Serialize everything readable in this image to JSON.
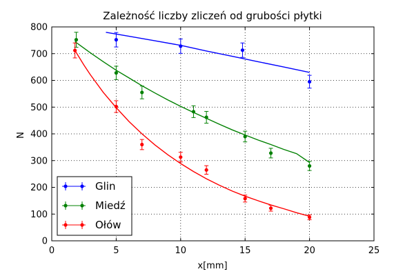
{
  "chart_data": {
    "type": "scatter",
    "title": "Zależność liczby zliczeń od grubości płytki",
    "xlabel": "x[mm]",
    "ylabel": "N",
    "xlim": [
      0,
      25
    ],
    "ylim": [
      0,
      800
    ],
    "xticks": [
      0,
      5,
      10,
      15,
      20,
      25
    ],
    "yticks": [
      0,
      100,
      200,
      300,
      400,
      500,
      600,
      700,
      800
    ],
    "grid": true,
    "legend_position": "bottom-left",
    "series": [
      {
        "name": "Glin",
        "color": "#0000ff",
        "points": [
          {
            "x": 5,
            "y": 752,
            "xerr": 0.1,
            "yerr": 27
          },
          {
            "x": 10,
            "y": 728,
            "xerr": 0.1,
            "yerr": 27
          },
          {
            "x": 14.8,
            "y": 713,
            "xerr": 0.1,
            "yerr": 27
          },
          {
            "x": 20,
            "y": 595,
            "xerr": 0.1,
            "yerr": 24
          }
        ],
        "fit": [
          {
            "x": 4.2,
            "y": 780
          },
          {
            "x": 6,
            "y": 765
          },
          {
            "x": 8,
            "y": 748
          },
          {
            "x": 10,
            "y": 731
          },
          {
            "x": 12,
            "y": 710
          },
          {
            "x": 14,
            "y": 690
          },
          {
            "x": 16,
            "y": 670
          },
          {
            "x": 18,
            "y": 650
          },
          {
            "x": 20,
            "y": 630
          }
        ]
      },
      {
        "name": "Miedź",
        "color": "#008000",
        "points": [
          {
            "x": 1.9,
            "y": 752,
            "xerr": 0.1,
            "yerr": 28
          },
          {
            "x": 5,
            "y": 628,
            "xerr": 0.1,
            "yerr": 25
          },
          {
            "x": 7,
            "y": 555,
            "xerr": 0.1,
            "yerr": 24
          },
          {
            "x": 11,
            "y": 483,
            "xerr": 0.1,
            "yerr": 22
          },
          {
            "x": 12,
            "y": 462,
            "xerr": 0.1,
            "yerr": 22
          },
          {
            "x": 15,
            "y": 390,
            "xerr": 0.1,
            "yerr": 20
          },
          {
            "x": 17,
            "y": 328,
            "xerr": 0.1,
            "yerr": 18
          },
          {
            "x": 20,
            "y": 280,
            "xerr": 0.1,
            "yerr": 17
          }
        ],
        "fit": [
          {
            "x": 1.8,
            "y": 745
          },
          {
            "x": 3,
            "y": 703
          },
          {
            "x": 4,
            "y": 670
          },
          {
            "x": 5,
            "y": 638
          },
          {
            "x": 6,
            "y": 609
          },
          {
            "x": 7,
            "y": 580
          },
          {
            "x": 8,
            "y": 553
          },
          {
            "x": 9,
            "y": 527
          },
          {
            "x": 10,
            "y": 503
          },
          {
            "x": 11,
            "y": 480
          },
          {
            "x": 12,
            "y": 458
          },
          {
            "x": 13,
            "y": 436
          },
          {
            "x": 14,
            "y": 415
          },
          {
            "x": 15,
            "y": 396
          },
          {
            "x": 16,
            "y": 377
          },
          {
            "x": 17,
            "y": 360
          },
          {
            "x": 18,
            "y": 342
          },
          {
            "x": 19,
            "y": 326
          },
          {
            "x": 20,
            "y": 293
          }
        ]
      },
      {
        "name": "Ołów",
        "color": "#ff0000",
        "points": [
          {
            "x": 1.8,
            "y": 712,
            "xerr": 0.1,
            "yerr": 28
          },
          {
            "x": 5,
            "y": 502,
            "xerr": 0.1,
            "yerr": 22
          },
          {
            "x": 7,
            "y": 360,
            "xerr": 0.1,
            "yerr": 19
          },
          {
            "x": 10,
            "y": 313,
            "xerr": 0.1,
            "yerr": 18
          },
          {
            "x": 12,
            "y": 265,
            "xerr": 0.1,
            "yerr": 16
          },
          {
            "x": 15,
            "y": 158,
            "xerr": 0.1,
            "yerr": 13
          },
          {
            "x": 17,
            "y": 122,
            "xerr": 0.1,
            "yerr": 11
          },
          {
            "x": 20,
            "y": 88,
            "xerr": 0.1,
            "yerr": 9
          }
        ],
        "fit": [
          {
            "x": 1.8,
            "y": 712
          },
          {
            "x": 2.5,
            "y": 657
          },
          {
            "x": 3,
            "y": 621
          },
          {
            "x": 4,
            "y": 555
          },
          {
            "x": 5,
            "y": 498
          },
          {
            "x": 6,
            "y": 446
          },
          {
            "x": 7,
            "y": 400
          },
          {
            "x": 8,
            "y": 359
          },
          {
            "x": 9,
            "y": 322
          },
          {
            "x": 10,
            "y": 289
          },
          {
            "x": 11,
            "y": 259
          },
          {
            "x": 12,
            "y": 232
          },
          {
            "x": 13,
            "y": 208
          },
          {
            "x": 14,
            "y": 186
          },
          {
            "x": 15,
            "y": 167
          },
          {
            "x": 16,
            "y": 150
          },
          {
            "x": 17,
            "y": 134
          },
          {
            "x": 18,
            "y": 120
          },
          {
            "x": 19,
            "y": 105
          },
          {
            "x": 20,
            "y": 92
          }
        ]
      }
    ]
  }
}
